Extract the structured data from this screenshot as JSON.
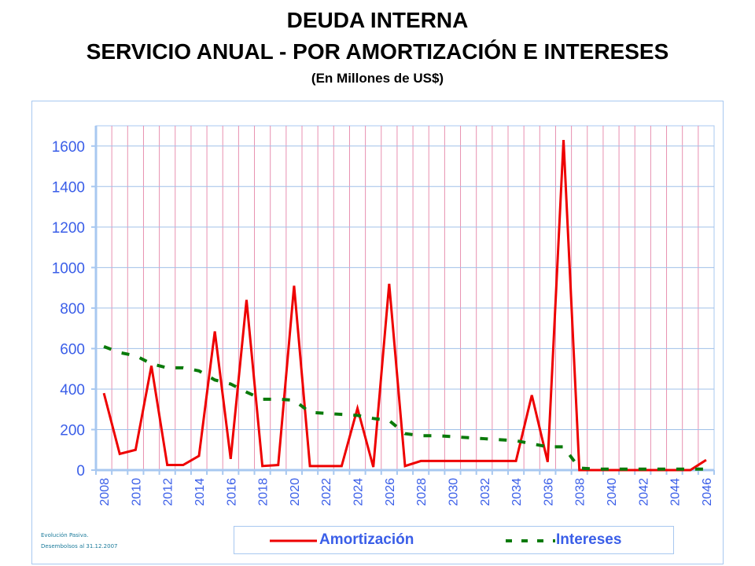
{
  "chart_data": {
    "type": "line",
    "title": "DEUDA INTERNA",
    "subtitle": "SERVICIO ANUAL - POR AMORTIZACIÓN E INTERESES",
    "unit_note": "(En Millones de US$)",
    "xlabel": "",
    "ylabel": "",
    "ylim": [
      0,
      1700
    ],
    "yticks": [
      0,
      200,
      400,
      600,
      800,
      1000,
      1200,
      1400,
      1600
    ],
    "x": [
      2008,
      2009,
      2010,
      2011,
      2012,
      2013,
      2014,
      2015,
      2016,
      2017,
      2018,
      2019,
      2020,
      2021,
      2022,
      2023,
      2024,
      2025,
      2026,
      2027,
      2028,
      2029,
      2030,
      2031,
      2032,
      2033,
      2034,
      2035,
      2036,
      2037,
      2038,
      2039,
      2040,
      2041,
      2042,
      2043,
      2044,
      2045,
      2046
    ],
    "xtick_labels": [
      "2008",
      "2010",
      "2012",
      "2014",
      "2016",
      "2018",
      "2020",
      "2022",
      "2024",
      "2026",
      "2028",
      "2030",
      "2032",
      "2034",
      "2036",
      "2038",
      "2040",
      "2042",
      "2044",
      "2046"
    ],
    "grid": true,
    "legend_placement": "bottom",
    "series": [
      {
        "name": "Amortización",
        "color": "#ee0000",
        "style": "solid",
        "values": [
          380,
          80,
          100,
          515,
          25,
          25,
          70,
          685,
          55,
          840,
          20,
          25,
          910,
          20,
          20,
          20,
          305,
          15,
          920,
          20,
          45,
          45,
          45,
          45,
          45,
          45,
          45,
          370,
          40,
          1630,
          0,
          0,
          0,
          0,
          0,
          0,
          0,
          0,
          50
        ]
      },
      {
        "name": "Intereses",
        "color": "#0a7a0a",
        "style": "dashed",
        "values": [
          610,
          580,
          565,
          525,
          505,
          505,
          490,
          445,
          425,
          385,
          350,
          350,
          345,
          285,
          280,
          275,
          270,
          255,
          245,
          180,
          170,
          170,
          165,
          160,
          155,
          150,
          145,
          130,
          115,
          115,
          10,
          5,
          5,
          5,
          5,
          5,
          5,
          5,
          5
        ]
      }
    ]
  },
  "footnote": {
    "line1": "Evolución Pasiva.",
    "line2": "Desembolsos al 31.12.2007"
  }
}
